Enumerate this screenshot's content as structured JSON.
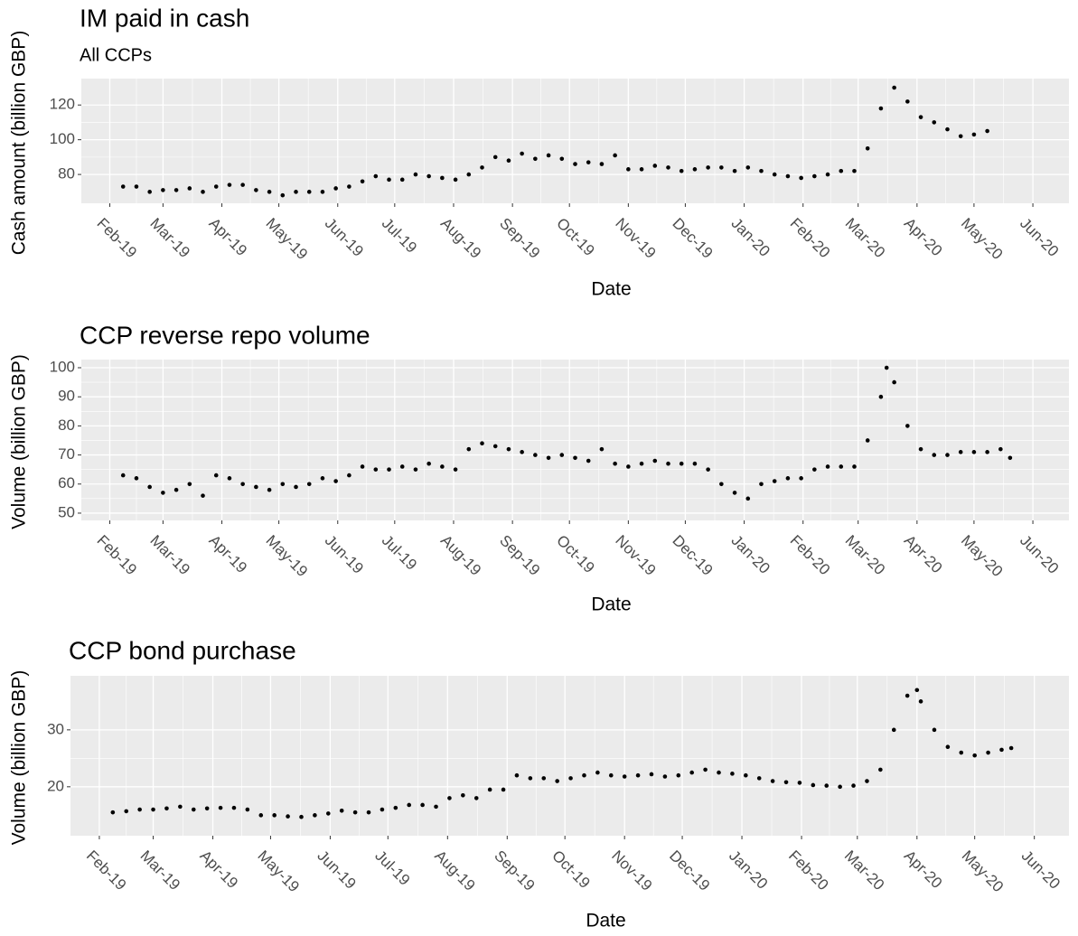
{
  "chart_data": [
    {
      "type": "scatter",
      "title": "IM paid in cash",
      "subtitle": "All CCPs",
      "x_label": "Date",
      "y_label": "Cash amount (billion GBP)",
      "color": "#000000",
      "grid": true,
      "xlim": [
        "2019-01-17",
        "2020-06-20"
      ],
      "ylim": [
        63.4,
        135.2
      ],
      "yticks": [
        80,
        100,
        120
      ],
      "xticks": [
        {
          "value": "2019-02-01",
          "label": "Feb-19"
        },
        {
          "value": "2019-03-01",
          "label": "Mar-19"
        },
        {
          "value": "2019-04-01",
          "label": "Apr-19"
        },
        {
          "value": "2019-05-01",
          "label": "May-19"
        },
        {
          "value": "2019-06-01",
          "label": "Jun-19"
        },
        {
          "value": "2019-07-01",
          "label": "Jul-19"
        },
        {
          "value": "2019-08-01",
          "label": "Aug-19"
        },
        {
          "value": "2019-09-01",
          "label": "Sep-19"
        },
        {
          "value": "2019-10-01",
          "label": "Oct-19"
        },
        {
          "value": "2019-11-01",
          "label": "Nov-19"
        },
        {
          "value": "2019-12-01",
          "label": "Dec-19"
        },
        {
          "value": "2020-01-01",
          "label": "Jan-20"
        },
        {
          "value": "2020-02-01",
          "label": "Feb-20"
        },
        {
          "value": "2020-03-01",
          "label": "Mar-20"
        },
        {
          "value": "2020-04-01",
          "label": "Apr-20"
        },
        {
          "value": "2020-05-01",
          "label": "May-20"
        },
        {
          "value": "2020-06-01",
          "label": "Jun-20"
        }
      ],
      "x": [
        "2019-02-08",
        "2019-02-15",
        "2019-02-22",
        "2019-03-01",
        "2019-03-08",
        "2019-03-15",
        "2019-03-22",
        "2019-03-29",
        "2019-04-05",
        "2019-04-12",
        "2019-04-19",
        "2019-04-26",
        "2019-05-03",
        "2019-05-10",
        "2019-05-17",
        "2019-05-24",
        "2019-05-31",
        "2019-06-07",
        "2019-06-14",
        "2019-06-21",
        "2019-06-28",
        "2019-07-05",
        "2019-07-12",
        "2019-07-19",
        "2019-07-26",
        "2019-08-02",
        "2019-08-09",
        "2019-08-16",
        "2019-08-23",
        "2019-08-30",
        "2019-09-06",
        "2019-09-13",
        "2019-09-20",
        "2019-09-27",
        "2019-10-04",
        "2019-10-11",
        "2019-10-18",
        "2019-10-25",
        "2019-11-01",
        "2019-11-08",
        "2019-11-15",
        "2019-11-22",
        "2019-11-29",
        "2019-12-06",
        "2019-12-13",
        "2019-12-20",
        "2019-12-27",
        "2020-01-03",
        "2020-01-10",
        "2020-01-17",
        "2020-01-24",
        "2020-01-31",
        "2020-02-07",
        "2020-02-14",
        "2020-02-21",
        "2020-02-28",
        "2020-03-06",
        "2020-03-13",
        "2020-03-20",
        "2020-03-27",
        "2020-04-03",
        "2020-04-10",
        "2020-04-17",
        "2020-04-24",
        "2020-05-01",
        "2020-05-08"
      ],
      "values": [
        73,
        73,
        70,
        71,
        71,
        72,
        70,
        73,
        74,
        74,
        71,
        70,
        68,
        70,
        70,
        70,
        72,
        73,
        76,
        79,
        77,
        77,
        80,
        79,
        78,
        77,
        80,
        84,
        90,
        88,
        92,
        89,
        91,
        89,
        86,
        87,
        86,
        91,
        83,
        83,
        85,
        84,
        82,
        83,
        84,
        84,
        82,
        84,
        82,
        80,
        79,
        78,
        79,
        80,
        82,
        82,
        95,
        118,
        130,
        122,
        113,
        110,
        106,
        102,
        103,
        105
      ]
    },
    {
      "type": "scatter",
      "title": "CCP reverse repo volume",
      "x_label": "Date",
      "y_label": "Volume (billion GBP)",
      "color": "#000000",
      "grid": true,
      "xlim": [
        "2019-01-17",
        "2020-06-20"
      ],
      "ylim": [
        47.5,
        102.8
      ],
      "yticks": [
        50,
        60,
        70,
        80,
        90,
        100
      ],
      "xticks": [
        {
          "value": "2019-02-01",
          "label": "Feb-19"
        },
        {
          "value": "2019-03-01",
          "label": "Mar-19"
        },
        {
          "value": "2019-04-01",
          "label": "Apr-19"
        },
        {
          "value": "2019-05-01",
          "label": "May-19"
        },
        {
          "value": "2019-06-01",
          "label": "Jun-19"
        },
        {
          "value": "2019-07-01",
          "label": "Jul-19"
        },
        {
          "value": "2019-08-01",
          "label": "Aug-19"
        },
        {
          "value": "2019-09-01",
          "label": "Sep-19"
        },
        {
          "value": "2019-10-01",
          "label": "Oct-19"
        },
        {
          "value": "2019-11-01",
          "label": "Nov-19"
        },
        {
          "value": "2019-12-01",
          "label": "Dec-19"
        },
        {
          "value": "2020-01-01",
          "label": "Jan-20"
        },
        {
          "value": "2020-02-01",
          "label": "Feb-20"
        },
        {
          "value": "2020-03-01",
          "label": "Mar-20"
        },
        {
          "value": "2020-04-01",
          "label": "Apr-20"
        },
        {
          "value": "2020-05-01",
          "label": "May-20"
        },
        {
          "value": "2020-06-01",
          "label": "Jun-20"
        }
      ],
      "x": [
        "2019-02-08",
        "2019-02-15",
        "2019-02-22",
        "2019-03-01",
        "2019-03-08",
        "2019-03-15",
        "2019-03-22",
        "2019-03-29",
        "2019-04-05",
        "2019-04-12",
        "2019-04-19",
        "2019-04-26",
        "2019-05-03",
        "2019-05-10",
        "2019-05-17",
        "2019-05-24",
        "2019-05-31",
        "2019-06-07",
        "2019-06-14",
        "2019-06-21",
        "2019-06-28",
        "2019-07-05",
        "2019-07-12",
        "2019-07-19",
        "2019-07-26",
        "2019-08-02",
        "2019-08-09",
        "2019-08-16",
        "2019-08-23",
        "2019-08-30",
        "2019-09-06",
        "2019-09-13",
        "2019-09-20",
        "2019-09-27",
        "2019-10-04",
        "2019-10-11",
        "2019-10-18",
        "2019-10-25",
        "2019-11-01",
        "2019-11-08",
        "2019-11-15",
        "2019-11-22",
        "2019-11-29",
        "2019-12-06",
        "2019-12-13",
        "2019-12-20",
        "2019-12-27",
        "2020-01-03",
        "2020-01-10",
        "2020-01-17",
        "2020-01-24",
        "2020-01-31",
        "2020-02-07",
        "2020-02-14",
        "2020-02-21",
        "2020-02-28",
        "2020-03-06",
        "2020-03-13",
        "2020-03-16",
        "2020-03-20",
        "2020-03-27",
        "2020-04-03",
        "2020-04-10",
        "2020-04-17",
        "2020-04-24",
        "2020-05-01",
        "2020-05-08",
        "2020-05-15",
        "2020-05-20"
      ],
      "values": [
        63,
        62,
        59,
        57,
        58,
        60,
        56,
        63,
        62,
        60,
        59,
        58,
        60,
        59,
        60,
        62,
        61,
        63,
        66,
        65,
        65,
        66,
        65,
        67,
        66,
        65,
        72,
        74,
        73,
        72,
        71,
        70,
        69,
        70,
        69,
        68,
        72,
        67,
        66,
        67,
        68,
        67,
        67,
        67,
        65,
        60,
        57,
        55,
        60,
        61,
        62,
        62,
        65,
        66,
        66,
        66,
        75,
        90,
        100,
        95,
        80,
        72,
        70,
        70,
        71,
        71,
        71,
        72,
        69
      ]
    },
    {
      "type": "scatter",
      "title": "CCP bond purchase",
      "x_label": "Date",
      "y_label": "Volume (billion GBP)",
      "color": "#000000",
      "grid": true,
      "xlim": [
        "2019-01-17",
        "2020-06-19"
      ],
      "ylim": [
        11.4,
        39.5
      ],
      "yticks": [
        20,
        30
      ],
      "xticks": [
        {
          "value": "2019-02-01",
          "label": "Feb-19"
        },
        {
          "value": "2019-03-01",
          "label": "Mar-19"
        },
        {
          "value": "2019-04-01",
          "label": "Apr-19"
        },
        {
          "value": "2019-05-01",
          "label": "May-19"
        },
        {
          "value": "2019-06-01",
          "label": "Jun-19"
        },
        {
          "value": "2019-07-01",
          "label": "Jul-19"
        },
        {
          "value": "2019-08-01",
          "label": "Aug-19"
        },
        {
          "value": "2019-09-01",
          "label": "Sep-19"
        },
        {
          "value": "2019-10-01",
          "label": "Oct-19"
        },
        {
          "value": "2019-11-01",
          "label": "Nov-19"
        },
        {
          "value": "2019-12-01",
          "label": "Dec-19"
        },
        {
          "value": "2020-01-01",
          "label": "Jan-20"
        },
        {
          "value": "2020-02-01",
          "label": "Feb-20"
        },
        {
          "value": "2020-03-01",
          "label": "Mar-20"
        },
        {
          "value": "2020-04-01",
          "label": "Apr-20"
        },
        {
          "value": "2020-05-01",
          "label": "May-20"
        },
        {
          "value": "2020-06-01",
          "label": "Jun-20"
        }
      ],
      "x": [
        "2019-02-08",
        "2019-02-15",
        "2019-02-22",
        "2019-03-01",
        "2019-03-08",
        "2019-03-15",
        "2019-03-22",
        "2019-03-29",
        "2019-04-05",
        "2019-04-12",
        "2019-04-19",
        "2019-04-26",
        "2019-05-03",
        "2019-05-10",
        "2019-05-17",
        "2019-05-24",
        "2019-05-31",
        "2019-06-07",
        "2019-06-14",
        "2019-06-21",
        "2019-06-28",
        "2019-07-05",
        "2019-07-12",
        "2019-07-19",
        "2019-07-26",
        "2019-08-02",
        "2019-08-09",
        "2019-08-16",
        "2019-08-23",
        "2019-08-30",
        "2019-09-06",
        "2019-09-13",
        "2019-09-20",
        "2019-09-27",
        "2019-10-04",
        "2019-10-11",
        "2019-10-18",
        "2019-10-25",
        "2019-11-01",
        "2019-11-08",
        "2019-11-15",
        "2019-11-22",
        "2019-11-29",
        "2019-12-06",
        "2019-12-13",
        "2019-12-20",
        "2019-12-27",
        "2020-01-03",
        "2020-01-10",
        "2020-01-17",
        "2020-01-24",
        "2020-01-31",
        "2020-02-07",
        "2020-02-14",
        "2020-02-21",
        "2020-02-28",
        "2020-03-06",
        "2020-03-13",
        "2020-03-20",
        "2020-03-27",
        "2020-04-01",
        "2020-04-03",
        "2020-04-10",
        "2020-04-17",
        "2020-04-24",
        "2020-05-01",
        "2020-05-08",
        "2020-05-15",
        "2020-05-20"
      ],
      "values": [
        15.5,
        15.7,
        16,
        16,
        16.2,
        16.5,
        16,
        16.2,
        16.3,
        16.3,
        16,
        15,
        15,
        14.8,
        14.7,
        15,
        15.3,
        15.8,
        15.5,
        15.5,
        16,
        16.3,
        16.8,
        16.8,
        16.5,
        18,
        18.5,
        18,
        19.5,
        19.5,
        22,
        21.5,
        21.5,
        21,
        21.5,
        22,
        22.5,
        22,
        21.8,
        22,
        22.2,
        21.8,
        22,
        22.5,
        23,
        22.5,
        22.3,
        22,
        21.5,
        21,
        20.8,
        20.7,
        20.3,
        20.2,
        20,
        20.2,
        21,
        23,
        30,
        36,
        37,
        35,
        30,
        27,
        26,
        25.5,
        26,
        26.5,
        26.8
      ]
    }
  ]
}
